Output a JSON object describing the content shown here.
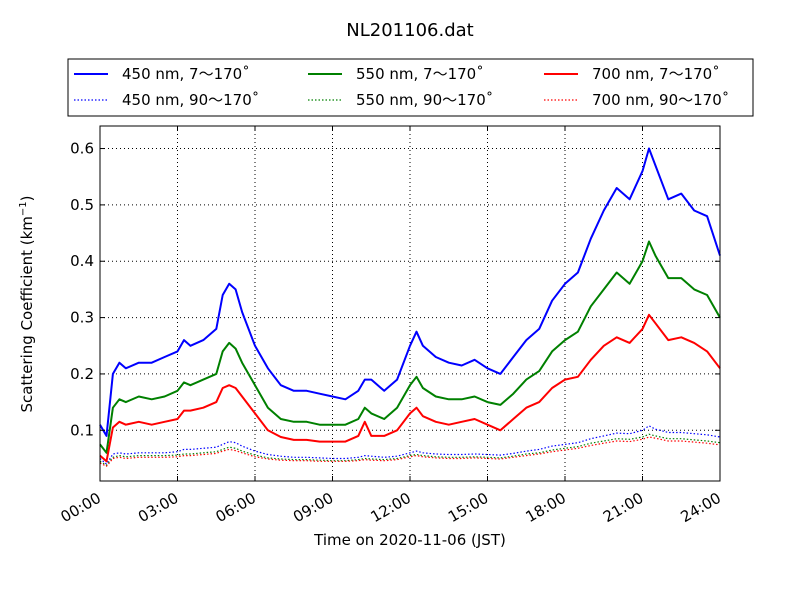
{
  "chart_data": {
    "type": "line",
    "title": "NL201106.dat",
    "xlabel": "Time on 2020-11-06 (JST)",
    "ylabel": "Scattering Coefficient (km",
    "ylabel_sup": "−1",
    "ylabel_close": ")",
    "x_unit": "hours",
    "xlim": [
      0,
      24
    ],
    "ylim": [
      0.01,
      0.64
    ],
    "xticks": [
      0,
      3,
      6,
      9,
      12,
      15,
      18,
      21,
      24
    ],
    "xtick_labels": [
      "00:00",
      "03:00",
      "06:00",
      "09:00",
      "12:00",
      "15:00",
      "18:00",
      "21:00",
      "24:00"
    ],
    "yticks": [
      0.1,
      0.2,
      0.3,
      0.4,
      0.5,
      0.6
    ],
    "ytick_labels": [
      "0.1",
      "0.2",
      "0.3",
      "0.4",
      "0.5",
      "0.6"
    ],
    "grid": true,
    "legend_placement": "top-center",
    "x": [
      0,
      0.25,
      0.5,
      0.75,
      1,
      1.5,
      2,
      2.5,
      3,
      3.25,
      3.5,
      4,
      4.5,
      4.75,
      5,
      5.25,
      5.5,
      6,
      6.5,
      7,
      7.5,
      8,
      8.5,
      9,
      9.5,
      10,
      10.25,
      10.5,
      11,
      11.5,
      12,
      12.25,
      12.5,
      13,
      13.5,
      14,
      14.5,
      15,
      15.5,
      16,
      16.5,
      17,
      17.5,
      18,
      18.5,
      19,
      19.5,
      20,
      20.5,
      21,
      21.25,
      21.5,
      22,
      22.5,
      23,
      23.5,
      24
    ],
    "series": [
      {
        "name": "450 nm, 7～170˚",
        "color": "#0000ff",
        "dash": "solid",
        "values": [
          0.11,
          0.09,
          0.2,
          0.22,
          0.21,
          0.22,
          0.22,
          0.23,
          0.24,
          0.26,
          0.25,
          0.26,
          0.28,
          0.34,
          0.36,
          0.35,
          0.31,
          0.25,
          0.21,
          0.18,
          0.17,
          0.17,
          0.165,
          0.16,
          0.155,
          0.17,
          0.19,
          0.19,
          0.17,
          0.19,
          0.25,
          0.275,
          0.25,
          0.23,
          0.22,
          0.215,
          0.225,
          0.21,
          0.2,
          0.23,
          0.26,
          0.28,
          0.33,
          0.36,
          0.38,
          0.44,
          0.49,
          0.53,
          0.51,
          0.56,
          0.6,
          0.57,
          0.51,
          0.52,
          0.49,
          0.48,
          0.41
        ]
      },
      {
        "name": "550 nm, 7～170˚",
        "color": "#008000",
        "dash": "solid",
        "values": [
          0.075,
          0.06,
          0.14,
          0.155,
          0.15,
          0.16,
          0.155,
          0.16,
          0.17,
          0.185,
          0.18,
          0.19,
          0.2,
          0.24,
          0.255,
          0.245,
          0.22,
          0.18,
          0.14,
          0.12,
          0.115,
          0.115,
          0.11,
          0.11,
          0.11,
          0.12,
          0.14,
          0.13,
          0.12,
          0.14,
          0.18,
          0.195,
          0.175,
          0.16,
          0.155,
          0.155,
          0.16,
          0.15,
          0.145,
          0.165,
          0.19,
          0.205,
          0.24,
          0.26,
          0.275,
          0.32,
          0.35,
          0.38,
          0.36,
          0.4,
          0.435,
          0.41,
          0.37,
          0.37,
          0.35,
          0.34,
          0.3
        ]
      },
      {
        "name": "700 nm, 7～170˚",
        "color": "#ff0000",
        "dash": "solid",
        "values": [
          0.055,
          0.045,
          0.105,
          0.115,
          0.11,
          0.115,
          0.11,
          0.115,
          0.12,
          0.135,
          0.135,
          0.14,
          0.15,
          0.175,
          0.18,
          0.175,
          0.16,
          0.13,
          0.1,
          0.088,
          0.083,
          0.083,
          0.08,
          0.08,
          0.08,
          0.09,
          0.115,
          0.09,
          0.09,
          0.1,
          0.13,
          0.14,
          0.125,
          0.115,
          0.11,
          0.115,
          0.12,
          0.11,
          0.1,
          0.12,
          0.14,
          0.15,
          0.175,
          0.19,
          0.195,
          0.225,
          0.25,
          0.265,
          0.255,
          0.28,
          0.305,
          0.29,
          0.26,
          0.265,
          0.255,
          0.24,
          0.21
        ]
      },
      {
        "name": "450 nm, 90～170˚",
        "color": "#0000ff",
        "dash": "dotted",
        "values": [
          0.05,
          0.04,
          0.058,
          0.06,
          0.058,
          0.06,
          0.06,
          0.06,
          0.062,
          0.066,
          0.066,
          0.068,
          0.07,
          0.075,
          0.08,
          0.078,
          0.072,
          0.063,
          0.057,
          0.054,
          0.052,
          0.052,
          0.051,
          0.05,
          0.05,
          0.052,
          0.055,
          0.054,
          0.052,
          0.054,
          0.06,
          0.063,
          0.06,
          0.058,
          0.057,
          0.057,
          0.058,
          0.057,
          0.056,
          0.059,
          0.063,
          0.066,
          0.072,
          0.075,
          0.078,
          0.085,
          0.09,
          0.095,
          0.094,
          0.1,
          0.108,
          0.102,
          0.096,
          0.096,
          0.094,
          0.092,
          0.088
        ]
      },
      {
        "name": "550 nm, 90～170˚",
        "color": "#008000",
        "dash": "dotted",
        "values": [
          0.045,
          0.038,
          0.052,
          0.055,
          0.053,
          0.055,
          0.055,
          0.055,
          0.056,
          0.058,
          0.058,
          0.06,
          0.062,
          0.066,
          0.07,
          0.068,
          0.063,
          0.056,
          0.051,
          0.049,
          0.048,
          0.048,
          0.047,
          0.046,
          0.046,
          0.048,
          0.05,
          0.049,
          0.048,
          0.05,
          0.055,
          0.057,
          0.055,
          0.053,
          0.052,
          0.052,
          0.053,
          0.052,
          0.051,
          0.054,
          0.058,
          0.06,
          0.065,
          0.068,
          0.071,
          0.077,
          0.081,
          0.085,
          0.084,
          0.088,
          0.093,
          0.09,
          0.085,
          0.085,
          0.083,
          0.081,
          0.078
        ]
      },
      {
        "name": "700 nm, 90～170˚",
        "color": "#ff0000",
        "dash": "dotted",
        "values": [
          0.042,
          0.036,
          0.05,
          0.052,
          0.05,
          0.052,
          0.052,
          0.052,
          0.053,
          0.055,
          0.055,
          0.057,
          0.059,
          0.063,
          0.066,
          0.064,
          0.06,
          0.053,
          0.049,
          0.047,
          0.046,
          0.046,
          0.045,
          0.045,
          0.045,
          0.046,
          0.048,
          0.047,
          0.046,
          0.048,
          0.053,
          0.055,
          0.053,
          0.051,
          0.05,
          0.05,
          0.051,
          0.05,
          0.049,
          0.052,
          0.055,
          0.058,
          0.062,
          0.065,
          0.068,
          0.073,
          0.077,
          0.081,
          0.08,
          0.084,
          0.088,
          0.086,
          0.081,
          0.081,
          0.079,
          0.077,
          0.074
        ]
      }
    ]
  }
}
